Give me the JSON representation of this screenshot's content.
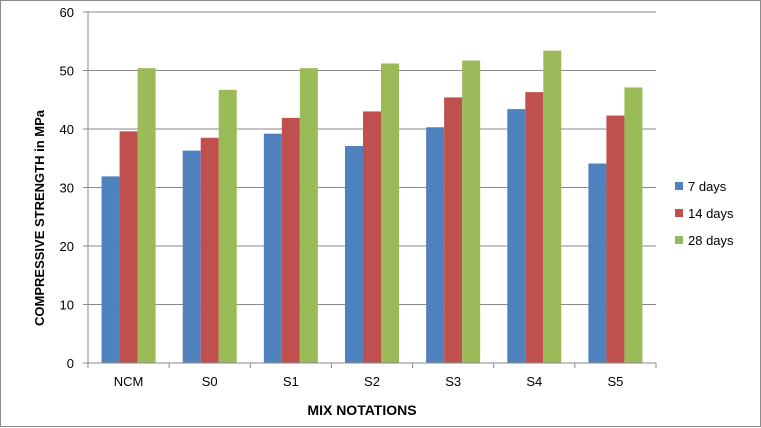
{
  "chart_data": {
    "type": "bar",
    "title": "",
    "xlabel": "MIX NOTATIONS",
    "ylabel": "COMPRESSIVE STRENGTH in MPa",
    "categories": [
      "NCM",
      "S0",
      "S1",
      "S2",
      "S3",
      "S4",
      "S5"
    ],
    "series": [
      {
        "name": "7 days",
        "color": "#4F81BD",
        "values": [
          31.9,
          36.3,
          39.2,
          37.1,
          40.3,
          43.4,
          34.1
        ]
      },
      {
        "name": "14 days",
        "color": "#C0504D",
        "values": [
          39.6,
          38.5,
          41.9,
          43.0,
          45.4,
          46.3,
          42.3
        ]
      },
      {
        "name": "28 days",
        "color": "#9BBB59",
        "values": [
          50.4,
          46.7,
          50.4,
          51.2,
          51.7,
          53.4,
          47.1
        ]
      }
    ],
    "ylim": [
      0,
      60
    ],
    "yticks": [
      "0",
      "10",
      "20",
      "30",
      "40",
      "50",
      "60"
    ],
    "grid": true,
    "legend_position": "right"
  }
}
